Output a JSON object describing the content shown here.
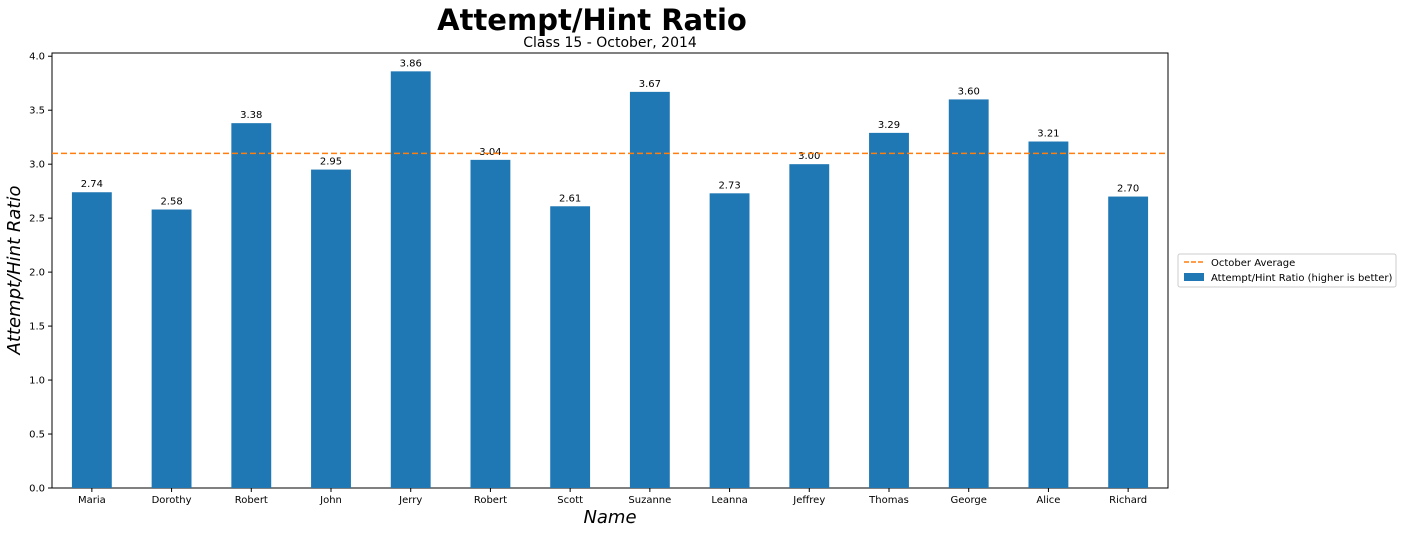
{
  "chart_data": {
    "type": "bar",
    "title": "Attempt/Hint Ratio",
    "subtitle": "Class 15 - October, 2014",
    "xlabel": "Name",
    "ylabel": "Attempt/Hint Ratio",
    "categories": [
      "Maria",
      "Dorothy",
      "Robert",
      "John",
      "Jerry",
      "Robert",
      "Scott",
      "Suzanne",
      "Leanna",
      "Jeffrey",
      "Thomas",
      "George",
      "Alice",
      "Richard"
    ],
    "series": [
      {
        "name": "Attempt/Hint Ratio (higher is better)",
        "values": [
          2.74,
          2.58,
          3.38,
          2.95,
          3.86,
          3.04,
          2.61,
          3.67,
          2.73,
          3.0,
          3.29,
          3.6,
          3.21,
          2.7
        ],
        "color": "#1f77b4"
      }
    ],
    "reference_line": {
      "name": "October Average",
      "value": 3.1,
      "color": "#ff7f0e",
      "style": "dashed"
    },
    "value_labels": [
      "2.74",
      "2.58",
      "3.38",
      "2.95",
      "3.86",
      "3.04",
      "2.61",
      "3.67",
      "2.73",
      "3.00",
      "3.29",
      "3.60",
      "3.21",
      "2.70"
    ],
    "ylim": [
      0,
      4.03
    ],
    "yticks": [
      "0.0",
      "0.5",
      "1.0",
      "1.5",
      "2.0",
      "2.5",
      "3.0",
      "3.5",
      "4.0"
    ],
    "grid": false,
    "legend_position": "right"
  }
}
